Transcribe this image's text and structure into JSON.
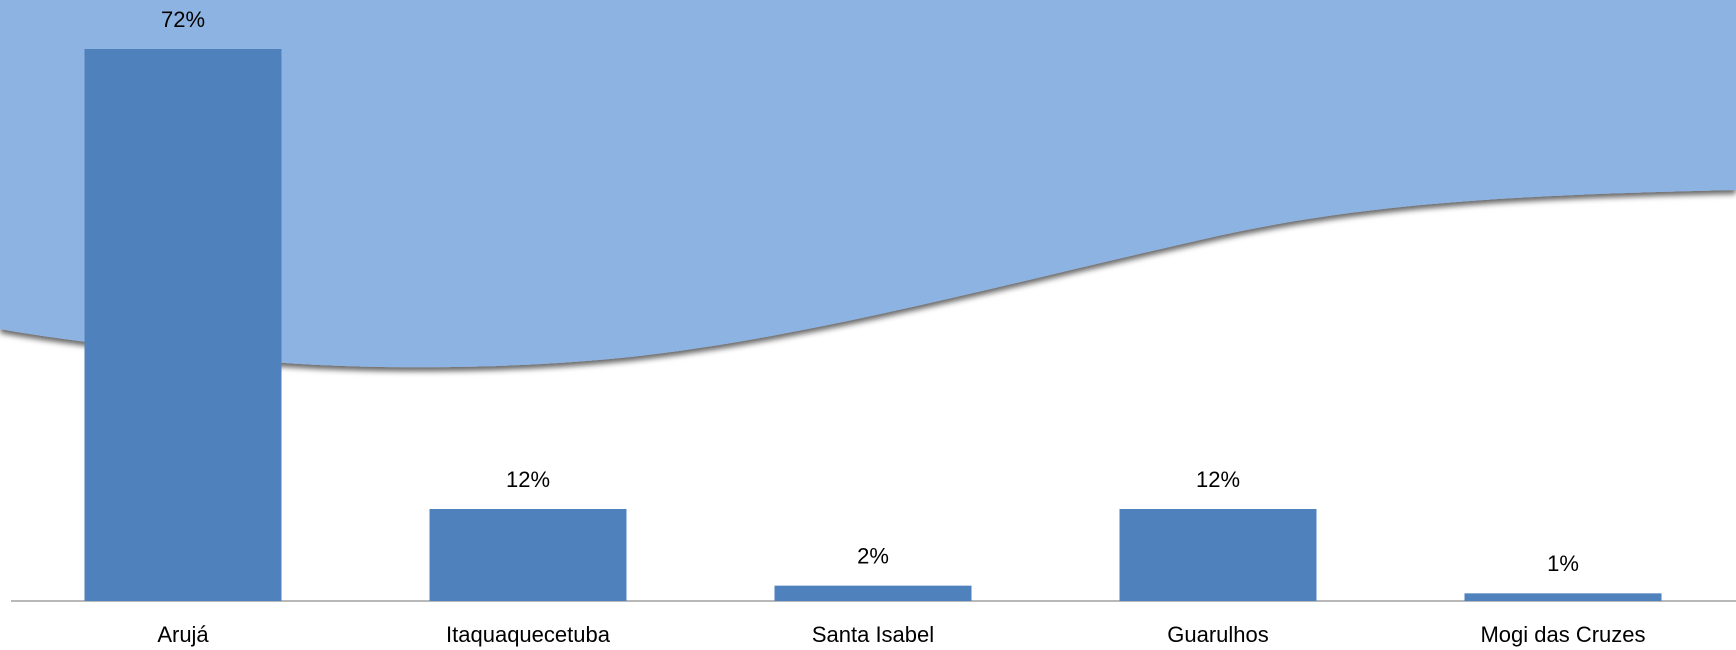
{
  "chart_data": {
    "type": "bar",
    "categories": [
      "Arujá",
      "Itaquaquecetuba",
      "Santa Isabel",
      "Guarulhos",
      "Mogi das Cruzes"
    ],
    "values": [
      72,
      12,
      2,
      12,
      1
    ],
    "value_labels": [
      "72%",
      "12%",
      "2%",
      "12%",
      "1%"
    ],
    "color": "#4f81bd"
  }
}
